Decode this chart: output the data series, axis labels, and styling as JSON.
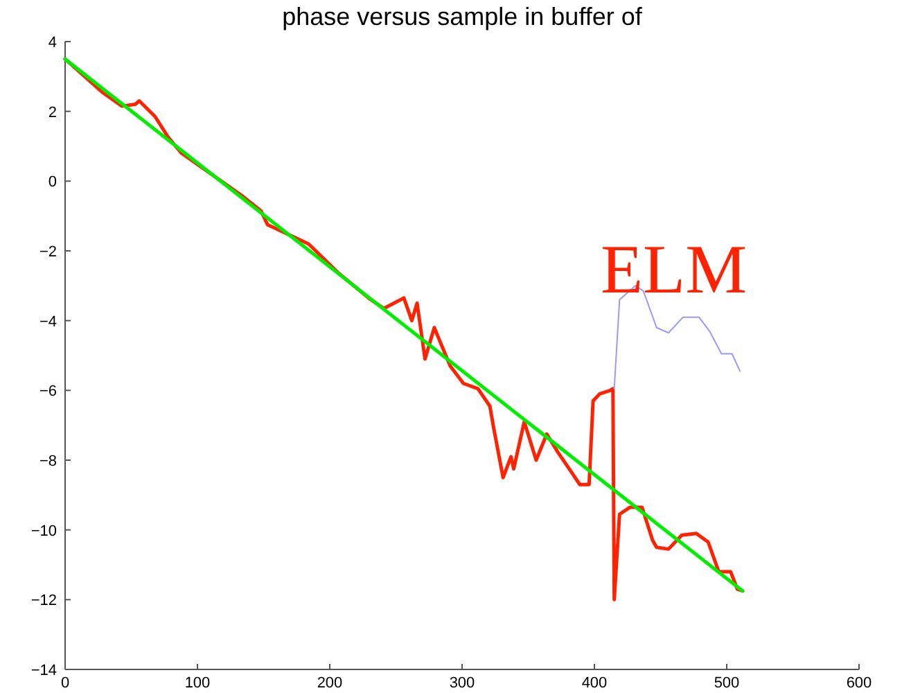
{
  "chart_data": {
    "type": "line",
    "title": "phase versus sample in buffer of",
    "xlim": [
      0,
      600
    ],
    "xticks": [
      0,
      100,
      200,
      300,
      400,
      500,
      600
    ],
    "ylim": [
      -14,
      4
    ],
    "yticks": [
      -14,
      -12,
      -10,
      -8,
      -6,
      -4,
      -2,
      0,
      2,
      4
    ],
    "grid": false,
    "marker": "none",
    "line_style": "solid",
    "annotations": [
      "ELM"
    ],
    "series": [
      {
        "color": "#ff2200",
        "x": [
          0,
          28,
          43,
          53,
          56,
          68,
          78,
          88,
          103,
          118,
          133,
          148,
          153,
          167,
          184,
          207,
          231,
          241,
          256,
          262,
          266,
          272,
          279,
          291,
          301,
          312,
          321,
          324,
          331,
          337,
          339,
          347,
          356,
          364,
          372,
          381,
          389,
          396,
          399,
          404,
          412,
          414,
          415,
          419,
          427,
          436,
          444,
          447,
          456,
          466,
          477,
          486,
          494,
          503,
          508,
          512
        ],
        "values": [
          3.5,
          2.55,
          2.15,
          2.2,
          2.3,
          1.85,
          1.25,
          0.8,
          0.4,
          0.0,
          -0.4,
          -0.85,
          -1.25,
          -1.5,
          -1.8,
          -2.65,
          -3.4,
          -3.65,
          -3.35,
          -4.0,
          -3.5,
          -5.1,
          -4.2,
          -5.3,
          -5.8,
          -5.95,
          -6.45,
          -7.1,
          -8.5,
          -7.9,
          -8.25,
          -6.9,
          -8.0,
          -7.25,
          -7.75,
          -8.25,
          -8.7,
          -8.7,
          -6.3,
          -6.1,
          -6.0,
          -5.95,
          -12.0,
          -9.55,
          -9.35,
          -9.35,
          -10.3,
          -10.5,
          -10.55,
          -10.15,
          -10.1,
          -10.35,
          -11.2,
          -11.2,
          -11.7,
          -11.75
        ]
      },
      {
        "color": "#9999ff",
        "x": [
          415,
          419,
          431,
          437,
          447,
          456,
          467,
          479,
          487,
          496,
          504,
          510
        ],
        "values": [
          -5.95,
          -3.4,
          -3.0,
          -3.15,
          -4.2,
          -4.35,
          -3.9,
          -3.9,
          -4.3,
          -4.95,
          -4.95,
          -5.45
        ]
      },
      {
        "color": "#00ee00",
        "x": [
          0,
          512
        ],
        "values": [
          3.5,
          -11.75
        ]
      }
    ]
  }
}
